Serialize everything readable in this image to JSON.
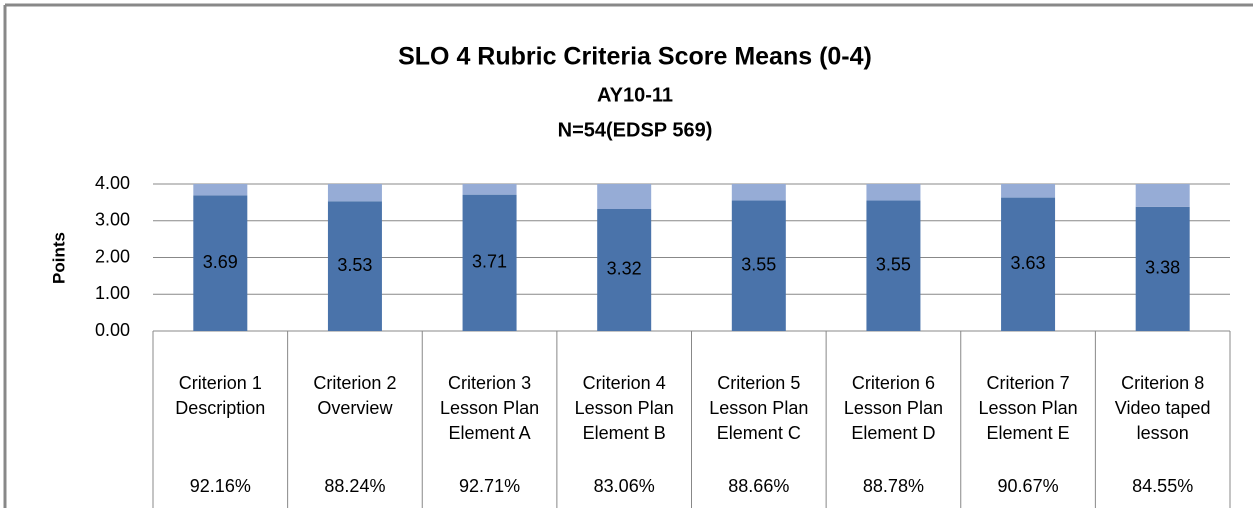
{
  "chart_data": {
    "type": "stacked_bar",
    "title": "SLO 4 Rubric Criteria Score Means (0-4)",
    "subtitle": [
      "AY10-11",
      "N=54(EDSP 569)"
    ],
    "y_label": "Points",
    "categories": [
      [
        "Criterion 1",
        "Description"
      ],
      [
        "Criterion 2",
        "Overview"
      ],
      [
        "Criterion 3",
        "Lesson Plan",
        "Element A"
      ],
      [
        "Criterion 4",
        "Lesson Plan",
        "Element B"
      ],
      [
        "Criterion 5",
        "Lesson Plan",
        "Element C"
      ],
      [
        "Criterion 6",
        "Lesson Plan",
        "Element D"
      ],
      [
        "Criterion 7",
        "Lesson Plan",
        "Element E"
      ],
      [
        "Criterion 8",
        "Video taped",
        "lesson"
      ]
    ],
    "category_percentages": [
      "92.16%",
      "88.24%",
      "92.71%",
      "83.06%",
      "88.66%",
      "88.78%",
      "90.67%",
      "84.55%"
    ],
    "series": [
      {
        "color": "#4a73aa",
        "values": [
          3.69,
          3.53,
          3.71,
          3.32,
          3.55,
          3.55,
          3.63,
          3.38
        ],
        "show_labels": true
      },
      {
        "color": "#96acd6",
        "values": [
          0.31,
          0.47,
          0.29,
          0.68,
          0.45,
          0.45,
          0.37,
          0.62
        ]
      }
    ],
    "ylim": [
      0,
      4
    ],
    "yticks": [
      {
        "value": 0,
        "label": "0.00"
      },
      {
        "value": 1,
        "label": "1.00"
      },
      {
        "value": 2,
        "label": "2.00"
      },
      {
        "value": 3,
        "label": "3.00"
      },
      {
        "value": 4,
        "label": "4.00"
      }
    ],
    "grid": true
  }
}
